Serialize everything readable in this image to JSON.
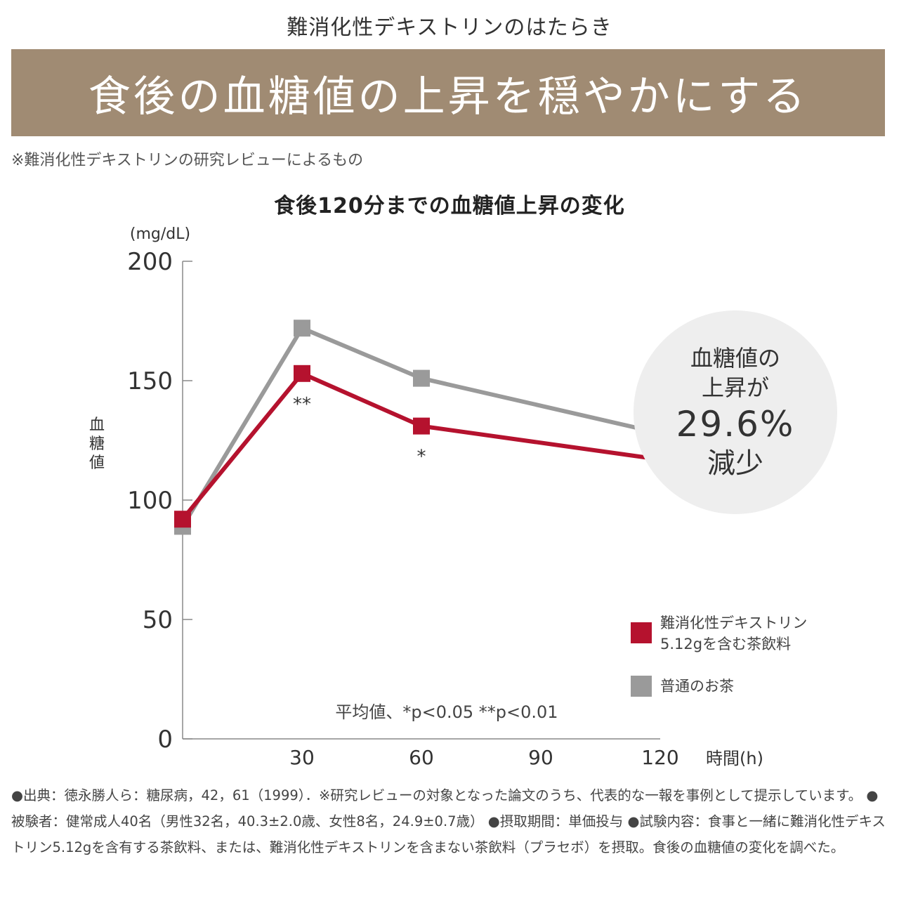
{
  "header": {
    "subtitle": "難消化性デキストリンのはたらき",
    "banner_title": "食後の血糖値の上昇を穏やかにする",
    "banner_color": "#a08b73",
    "note": "※難消化性デキストリンの研究レビューによるもの"
  },
  "chart_data": {
    "type": "line",
    "title": "食後120分までの血糖値上昇の変化",
    "unit": "(mg/dL)",
    "ylabel": "血糖値",
    "xlabel": "時間(h)",
    "ylim": [
      0,
      200
    ],
    "yticks": [
      0,
      50,
      100,
      150,
      200
    ],
    "xticks": [
      30,
      60,
      90,
      120
    ],
    "grid": false,
    "legend_position": "bottom-right",
    "series": [
      {
        "name_lines": [
          "難消化性デキストリン",
          "5.12gを含む茶飲料"
        ],
        "color": "#b5122e",
        "x": [
          0,
          30,
          60,
          120
        ],
        "y": [
          92,
          153,
          131,
          117
        ]
      },
      {
        "name_lines": [
          "普通のお茶"
        ],
        "color": "#9a9a9a",
        "x": [
          0,
          30,
          60,
          120
        ],
        "y": [
          89,
          172,
          151,
          128
        ]
      }
    ],
    "annotations": [
      {
        "x": 30,
        "y": 153,
        "text": "**"
      },
      {
        "x": 60,
        "y": 131,
        "text": "*"
      }
    ],
    "stat_note": "平均値、*p<0.05 **p<0.01"
  },
  "callout": {
    "line1": "血糖値の",
    "line2": "上昇が",
    "line3": "29.6%",
    "line4": "減少"
  },
  "footnote": "●出典：徳永勝人ら：糖尿病，42，61（1999）．※研究レビューの対象となった論文のうち、代表的な一報を事例として提示しています。 ●被験者：健常成人40名（男性32名，40.3±2.0歳、女性8名，24.9±0.7歳） ●摂取期間：単価投与 ●試験内容：食事と一緒に難消化性デキストリン5.12gを含有する茶飲料、または、難消化性デキストリンを含まない茶飲料（プラセボ）を摂取。食後の血糖値の変化を調べた。"
}
